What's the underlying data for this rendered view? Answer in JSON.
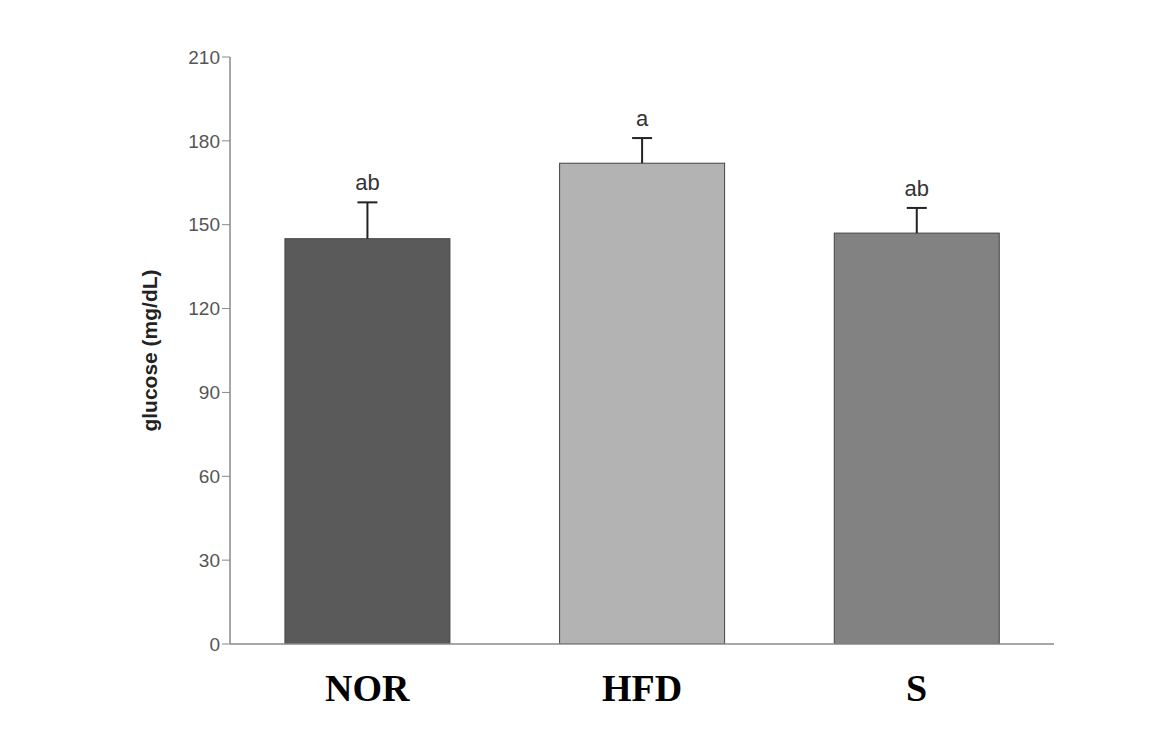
{
  "chart_data": {
    "type": "bar",
    "categories": [
      "NOR",
      "HFD",
      "S"
    ],
    "values": [
      145,
      172,
      147
    ],
    "errors": [
      13,
      9,
      9
    ],
    "significance_letters": [
      "ab",
      "a",
      "ab"
    ],
    "colors": [
      "#5a5a5a",
      "#b3b3b3",
      "#828282"
    ],
    "ylabel": "glucose (mg/dL)",
    "ylim": [
      0,
      210
    ],
    "yticks": [
      0,
      30,
      60,
      90,
      120,
      150,
      180,
      210
    ],
    "grid": false
  }
}
